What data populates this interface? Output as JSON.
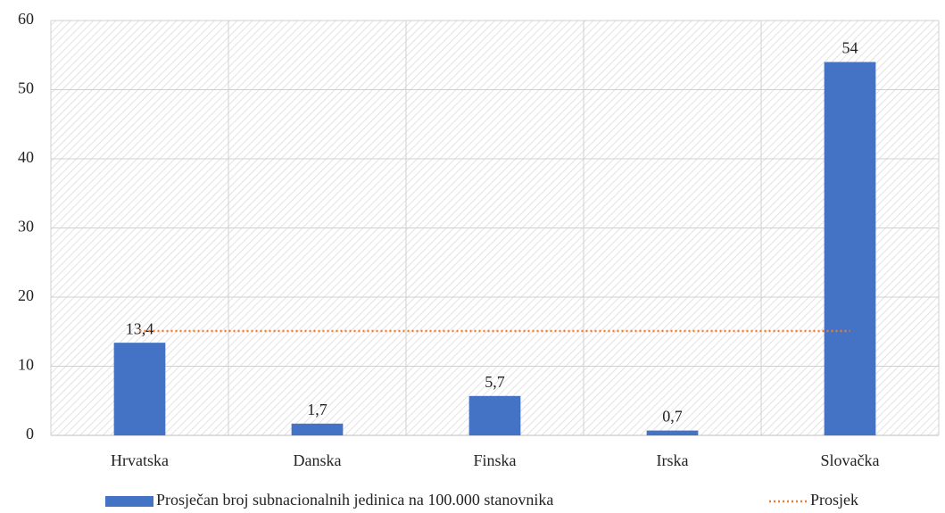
{
  "chart_data": {
    "type": "bar",
    "categories": [
      "Hrvatska",
      "Danska",
      "Finska",
      "Irska",
      "Slovačka"
    ],
    "series": [
      {
        "name": "Prosječan broj subnacionalnih jedinica na 100.000 stanovnika",
        "type": "bar",
        "color": "#4472c4",
        "values": [
          13.4,
          1.7,
          5.7,
          0.7,
          54
        ],
        "value_labels": [
          "13,4",
          "1,7",
          "5,7",
          "0,7",
          "54"
        ]
      },
      {
        "name": "Prosjek",
        "type": "line",
        "color": "#ed7d31",
        "values": [
          15.1,
          15.1,
          15.1,
          15.1,
          15.1
        ]
      }
    ],
    "ylim": [
      0,
      60
    ],
    "yticks": [
      0,
      10,
      20,
      30,
      40,
      50,
      60
    ],
    "grid": true,
    "legend": "bottom"
  }
}
